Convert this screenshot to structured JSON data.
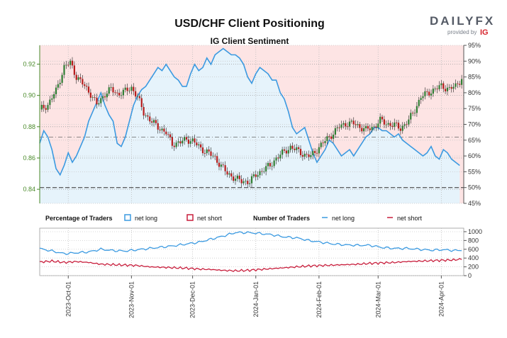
{
  "title": "USD/CHF Client Positioning",
  "subtitle": "IG Client Sentiment",
  "brand": {
    "name": "DAILYFX",
    "provided_by": "provided by",
    "ig": "IG",
    "name_icon": "dailyfx-logo",
    "ig_icon": "ig-logo",
    "brand_color": "#d6232b"
  },
  "colors": {
    "price_up": "#2e7d32",
    "price_down": "#b71c1c",
    "net_long": "#3b9ae1",
    "net_short": "#c81e3c",
    "long_fill": "#e6f3fb",
    "short_fill": "#fde4e4",
    "axis_left": "#4a8a2a"
  },
  "legend": {
    "percentage_title": "Percentage of Traders",
    "pct_long": "net long",
    "pct_short": "net short",
    "number_title": "Number of Traders",
    "num_long": "net long",
    "num_short": "net short"
  },
  "chart_data": [
    {
      "type": "candlestick+line",
      "x_ticks": [
        "2023-Oct-01",
        "2023-Nov-01",
        "2023-Dec-01",
        "2024-Jan-01",
        "2024-Feb-01",
        "2024-Mar-01",
        "2024-Apr-01"
      ],
      "x_tick_positions": [
        14,
        45,
        75,
        106,
        137,
        166,
        197
      ],
      "x_range": [
        0,
        208
      ],
      "y_left_ticks": [
        "0.84",
        "0.86",
        "0.88",
        "0.90",
        "0.92"
      ],
      "y_left_range": [
        0.831,
        0.932
      ],
      "y_right_ticks": [
        "45%",
        "50%",
        "55%",
        "60%",
        "65%",
        "70%",
        "75%",
        "80%",
        "85%",
        "90%",
        "95%"
      ],
      "y_right_range": [
        45,
        95
      ],
      "reference_line_pct": 50,
      "crossover_line_pct": 66,
      "price_close_path": [
        [
          0,
          0.891
        ],
        [
          4,
          0.894
        ],
        [
          8,
          0.903
        ],
        [
          12,
          0.918
        ],
        [
          15,
          0.921
        ],
        [
          18,
          0.912
        ],
        [
          22,
          0.906
        ],
        [
          25,
          0.901
        ],
        [
          28,
          0.894
        ],
        [
          32,
          0.901
        ],
        [
          35,
          0.904
        ],
        [
          38,
          0.901
        ],
        [
          41,
          0.902
        ],
        [
          45,
          0.905
        ],
        [
          48,
          0.899
        ],
        [
          51,
          0.889
        ],
        [
          55,
          0.883
        ],
        [
          58,
          0.88
        ],
        [
          62,
          0.876
        ],
        [
          65,
          0.869
        ],
        [
          69,
          0.87
        ],
        [
          72,
          0.872
        ],
        [
          75,
          0.871
        ],
        [
          79,
          0.866
        ],
        [
          82,
          0.864
        ],
        [
          86,
          0.86
        ],
        [
          89,
          0.855
        ],
        [
          92,
          0.85
        ],
        [
          96,
          0.847
        ],
        [
          99,
          0.845
        ],
        [
          103,
          0.845
        ],
        [
          106,
          0.849
        ],
        [
          110,
          0.853
        ],
        [
          113,
          0.855
        ],
        [
          116,
          0.86
        ],
        [
          120,
          0.864
        ],
        [
          123,
          0.867
        ],
        [
          126,
          0.865
        ],
        [
          130,
          0.862
        ],
        [
          133,
          0.861
        ],
        [
          137,
          0.867
        ],
        [
          140,
          0.871
        ],
        [
          144,
          0.876
        ],
        [
          147,
          0.88
        ],
        [
          150,
          0.882
        ],
        [
          154,
          0.882
        ],
        [
          157,
          0.88
        ],
        [
          160,
          0.878
        ],
        [
          164,
          0.88
        ],
        [
          167,
          0.884
        ],
        [
          170,
          0.882
        ],
        [
          174,
          0.881
        ],
        [
          177,
          0.879
        ],
        [
          181,
          0.884
        ],
        [
          184,
          0.891
        ],
        [
          187,
          0.899
        ],
        [
          191,
          0.902
        ],
        [
          194,
          0.904
        ],
        [
          197,
          0.906
        ],
        [
          201,
          0.904
        ],
        [
          204,
          0.906
        ],
        [
          207,
          0.911
        ]
      ],
      "net_long_pct": [
        [
          0,
          64
        ],
        [
          2,
          68
        ],
        [
          4,
          66
        ],
        [
          6,
          62
        ],
        [
          8,
          56
        ],
        [
          10,
          54
        ],
        [
          12,
          57
        ],
        [
          14,
          61
        ],
        [
          16,
          58
        ],
        [
          18,
          60
        ],
        [
          20,
          63
        ],
        [
          22,
          66
        ],
        [
          24,
          71
        ],
        [
          26,
          74
        ],
        [
          28,
          77
        ],
        [
          30,
          80
        ],
        [
          32,
          76
        ],
        [
          34,
          73
        ],
        [
          36,
          71
        ],
        [
          38,
          64
        ],
        [
          40,
          63
        ],
        [
          42,
          66
        ],
        [
          44,
          71
        ],
        [
          46,
          76
        ],
        [
          48,
          79
        ],
        [
          50,
          81
        ],
        [
          52,
          82
        ],
        [
          54,
          84
        ],
        [
          56,
          86
        ],
        [
          58,
          88
        ],
        [
          60,
          87
        ],
        [
          62,
          89
        ],
        [
          64,
          87
        ],
        [
          66,
          85
        ],
        [
          68,
          84
        ],
        [
          70,
          82
        ],
        [
          72,
          82
        ],
        [
          74,
          86
        ],
        [
          76,
          89
        ],
        [
          78,
          87
        ],
        [
          80,
          88
        ],
        [
          82,
          91
        ],
        [
          84,
          89
        ],
        [
          86,
          92
        ],
        [
          88,
          93
        ],
        [
          90,
          94
        ],
        [
          92,
          93
        ],
        [
          94,
          92
        ],
        [
          96,
          92
        ],
        [
          98,
          91
        ],
        [
          100,
          89
        ],
        [
          102,
          85
        ],
        [
          104,
          83
        ],
        [
          106,
          86
        ],
        [
          108,
          88
        ],
        [
          110,
          87
        ],
        [
          112,
          86
        ],
        [
          114,
          84
        ],
        [
          116,
          84
        ],
        [
          118,
          80
        ],
        [
          120,
          78
        ],
        [
          122,
          74
        ],
        [
          124,
          69
        ],
        [
          126,
          67
        ],
        [
          128,
          68
        ],
        [
          130,
          69
        ],
        [
          132,
          65
        ],
        [
          134,
          61
        ],
        [
          136,
          58
        ],
        [
          138,
          60
        ],
        [
          140,
          62
        ],
        [
          142,
          65
        ],
        [
          144,
          64
        ],
        [
          146,
          62
        ],
        [
          148,
          60
        ],
        [
          150,
          61
        ],
        [
          152,
          62
        ],
        [
          154,
          60
        ],
        [
          156,
          62
        ],
        [
          158,
          64
        ],
        [
          160,
          66
        ],
        [
          162,
          67
        ],
        [
          164,
          69
        ],
        [
          166,
          69
        ],
        [
          168,
          68
        ],
        [
          170,
          68
        ],
        [
          172,
          67
        ],
        [
          174,
          66
        ],
        [
          176,
          67
        ],
        [
          178,
          65
        ],
        [
          180,
          64
        ],
        [
          182,
          63
        ],
        [
          184,
          62
        ],
        [
          186,
          61
        ],
        [
          188,
          60
        ],
        [
          190,
          61
        ],
        [
          192,
          63
        ],
        [
          194,
          60
        ],
        [
          196,
          59
        ],
        [
          198,
          62
        ],
        [
          200,
          61
        ],
        [
          202,
          59
        ],
        [
          204,
          58
        ],
        [
          206,
          57
        ]
      ],
      "series": [
        {
          "name": "net long",
          "color_key": "net_long"
        },
        {
          "name": "net short",
          "color_key": "net_short"
        }
      ]
    },
    {
      "type": "line",
      "y_ticks": [
        "0",
        "200",
        "400",
        "600",
        "800",
        "1000"
      ],
      "y_range": [
        0,
        1080
      ],
      "series": [
        {
          "name": "net long",
          "values": [
            [
              0,
              615
            ],
            [
              6,
              560
            ],
            [
              12,
              500
            ],
            [
              18,
              520
            ],
            [
              24,
              540
            ],
            [
              30,
              600
            ],
            [
              36,
              570
            ],
            [
              42,
              560
            ],
            [
              48,
              590
            ],
            [
              54,
              620
            ],
            [
              60,
              650
            ],
            [
              66,
              680
            ],
            [
              72,
              720
            ],
            [
              78,
              760
            ],
            [
              84,
              830
            ],
            [
              90,
              900
            ],
            [
              96,
              980
            ],
            [
              102,
              980
            ],
            [
              108,
              960
            ],
            [
              114,
              930
            ],
            [
              120,
              880
            ],
            [
              126,
              860
            ],
            [
              132,
              800
            ],
            [
              138,
              760
            ],
            [
              144,
              720
            ],
            [
              150,
              700
            ],
            [
              156,
              690
            ],
            [
              162,
              690
            ],
            [
              168,
              640
            ],
            [
              174,
              620
            ],
            [
              180,
              620
            ],
            [
              186,
              600
            ],
            [
              192,
              580
            ],
            [
              198,
              590
            ],
            [
              204,
              570
            ],
            [
              207,
              580
            ]
          ]
        },
        {
          "name": "net short",
          "values": [
            [
              0,
              310
            ],
            [
              6,
              330
            ],
            [
              12,
              300
            ],
            [
              18,
              320
            ],
            [
              24,
              300
            ],
            [
              30,
              260
            ],
            [
              36,
              250
            ],
            [
              42,
              240
            ],
            [
              48,
              230
            ],
            [
              54,
              200
            ],
            [
              60,
              190
            ],
            [
              66,
              180
            ],
            [
              72,
              170
            ],
            [
              78,
              150
            ],
            [
              84,
              140
            ],
            [
              90,
              120
            ],
            [
              96,
              110
            ],
            [
              102,
              120
            ],
            [
              108,
              140
            ],
            [
              114,
              160
            ],
            [
              120,
              180
            ],
            [
              126,
              200
            ],
            [
              132,
              220
            ],
            [
              138,
              230
            ],
            [
              144,
              240
            ],
            [
              150,
              250
            ],
            [
              156,
              260
            ],
            [
              162,
              280
            ],
            [
              168,
              290
            ],
            [
              174,
              300
            ],
            [
              180,
              320
            ],
            [
              186,
              330
            ],
            [
              192,
              340
            ],
            [
              198,
              350
            ],
            [
              204,
              360
            ],
            [
              207,
              380
            ]
          ]
        }
      ]
    }
  ]
}
